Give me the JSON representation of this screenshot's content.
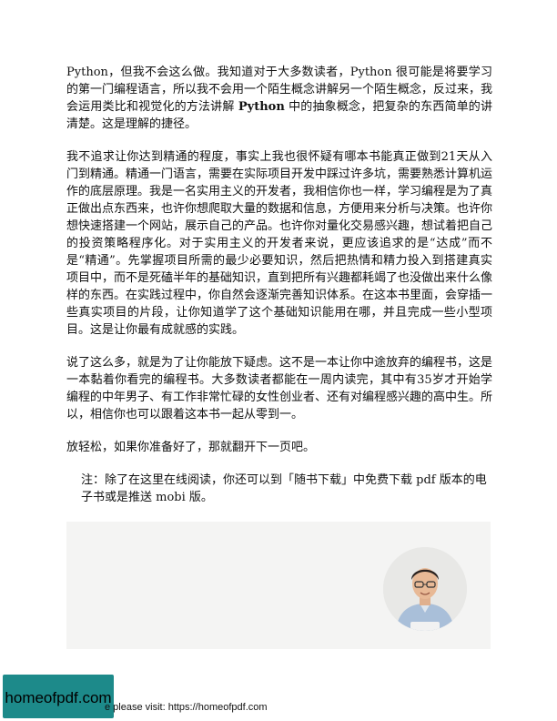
{
  "paragraphs": {
    "p1_before": "Python，但我不会这么做。我知道对于大多数读者，Python 很可能是将要学习的第一门编程语言，所以我不会用一个陌生概念讲解另一个陌生概念，反过来，我会运用类比和视觉化的方法讲解 ",
    "p1_bold": "Python",
    "p1_after": " 中的抽象概念，把复杂的东西简单的讲清楚。这是理解的捷径。",
    "p2": "我不追求让你达到精通的程度，事实上我也很怀疑有哪本书能真正做到21天从入门到精通。精通一门语言，需要在实际项目开发中踩过许多坑，需要熟悉计算机运作的底层原理。我是一名实用主义的开发者，我相信你也一样，学习编程是为了真正做出点东西来，也许你想爬取大量的数据和信息，方便用来分析与决策。也许你想快速搭建一个网站，展示自己的产品。也许你对量化交易感兴趣，想试着把自己的投资策略程序化。对于实用主义的开发者来说，更应该追求的是“达成”而不是“精通”。先掌握项目所需的最少必要知识，然后把热情和精力投入到搭建真实项目中，而不是死磕半年的基础知识，直到把所有兴趣都耗竭了也没做出来什么像样的东西。在实践过程中，你自然会逐渐完善知识体系。在这本书里面，会穿插一些真实项目的片段，让你知道学了这个基础知识能用在哪，并且完成一些小型项目。这是让你最有成就感的实践。",
    "p3": "说了这么多，就是为了让你能放下疑虑。这不是一本让你中途放弃的编程书，这是一本黏着你看完的编程书。大多数读者都能在一周内读完，其中有35岁才开始学编程的中年男子、有工作非常忙碌的女性创业者、还有对编程感兴趣的高中生。所以，相信你也可以跟着这本书一起从零到一。",
    "p4": "放轻松，如果你准备好了，那就翻开下一页吧。"
  },
  "note": "注：除了在这里在线阅读，你还可以到「随书下载」中免费下载 pdf 版本的电子书或是推送 mobi 版。",
  "footer": {
    "logo_text": "homeofpdf.com",
    "visit_text": "e please visit: https://homeofpdf.com"
  }
}
